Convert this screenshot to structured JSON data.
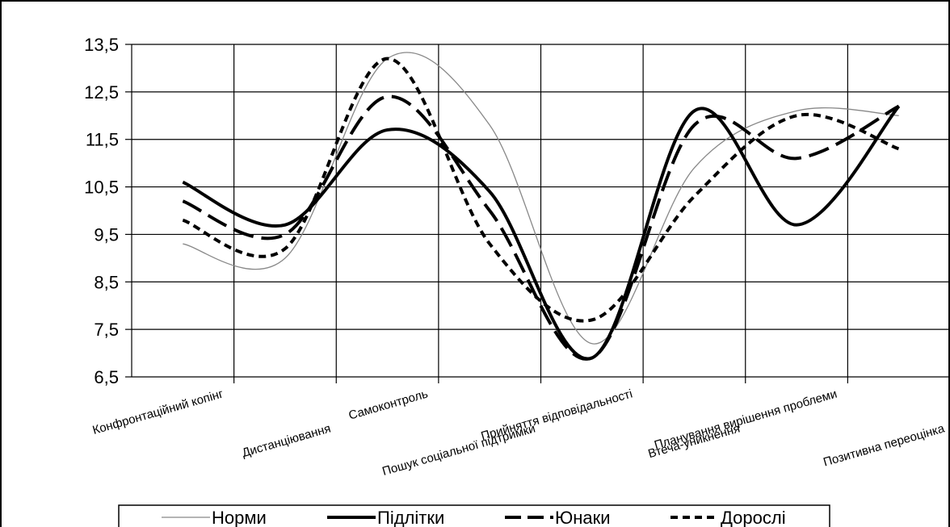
{
  "chart_data": {
    "type": "line",
    "title": "",
    "xlabel": "",
    "ylabel": "",
    "ylim": [
      6.5,
      13.5
    ],
    "yticks": [
      "6,5",
      "7,5",
      "8,5",
      "9,5",
      "10,5",
      "11,5",
      "12,5",
      "13,5"
    ],
    "grid": true,
    "legend_position": "bottom",
    "categories": [
      "Конфронтаційний копінг",
      "Дистанціювання",
      "Самоконтроль",
      "Пошук соціальної підтримки",
      "Прийняття відповідальності",
      "Втеча-уникнення",
      "Планування вирішення проблеми",
      "Позитивна переоцінка"
    ],
    "series": [
      {
        "name": "Норми",
        "style": "thin",
        "values": [
          9.3,
          9.0,
          13.2,
          11.8,
          7.2,
          10.9,
          12.1,
          12.0
        ]
      },
      {
        "name": "Підлітки",
        "style": "solid",
        "values": [
          10.6,
          9.7,
          11.7,
          10.4,
          6.9,
          12.1,
          9.7,
          12.2
        ]
      },
      {
        "name": "Юнаки",
        "style": "dash",
        "values": [
          10.2,
          9.5,
          12.4,
          10.0,
          6.9,
          11.8,
          11.1,
          12.2
        ]
      },
      {
        "name": "Дорослі",
        "style": "dot",
        "values": [
          9.8,
          9.2,
          13.2,
          9.3,
          7.7,
          10.3,
          12.0,
          11.3
        ]
      }
    ],
    "colors": {
      "lines": "#000000",
      "thin_line": "#888888",
      "grid": "#000000",
      "background": "#ffffff"
    }
  }
}
